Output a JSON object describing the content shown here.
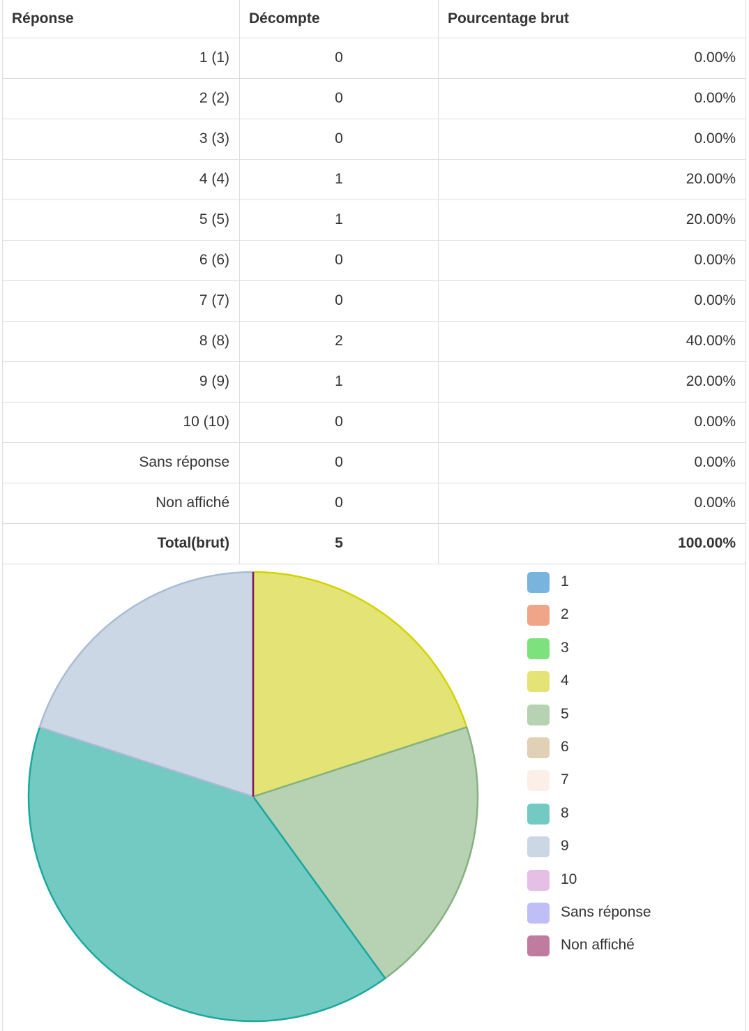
{
  "table": {
    "headers": {
      "answer": "Réponse",
      "count": "Décompte",
      "percent": "Pourcentage brut"
    },
    "rows": [
      {
        "answer": "1 (1)",
        "count": "0",
        "percent": "0.00%"
      },
      {
        "answer": "2 (2)",
        "count": "0",
        "percent": "0.00%"
      },
      {
        "answer": "3 (3)",
        "count": "0",
        "percent": "0.00%"
      },
      {
        "answer": "4 (4)",
        "count": "1",
        "percent": "20.00%"
      },
      {
        "answer": "5 (5)",
        "count": "1",
        "percent": "20.00%"
      },
      {
        "answer": "6 (6)",
        "count": "0",
        "percent": "0.00%"
      },
      {
        "answer": "7 (7)",
        "count": "0",
        "percent": "0.00%"
      },
      {
        "answer": "8 (8)",
        "count": "2",
        "percent": "40.00%"
      },
      {
        "answer": "9 (9)",
        "count": "1",
        "percent": "20.00%"
      },
      {
        "answer": "10 (10)",
        "count": "0",
        "percent": "0.00%"
      },
      {
        "answer": "Sans réponse",
        "count": "0",
        "percent": "0.00%"
      },
      {
        "answer": "Non affiché",
        "count": "0",
        "percent": "0.00%"
      }
    ],
    "total": {
      "answer": "Total(brut)",
      "count": "5",
      "percent": "100.00%"
    }
  },
  "chart_data": {
    "type": "pie",
    "categories": [
      "1",
      "2",
      "3",
      "4",
      "5",
      "6",
      "7",
      "8",
      "9",
      "10",
      "Sans réponse",
      "Non affiché"
    ],
    "values": [
      0,
      0,
      0,
      1,
      1,
      0,
      0,
      2,
      1,
      0,
      0,
      0
    ],
    "colors": [
      "#79b4de",
      "#f0a488",
      "#7de27d",
      "#e3e475",
      "#b6d2b3",
      "#e0d0b5",
      "#fcefe8",
      "#72cac3",
      "#ccd7e6",
      "#e5bfe5",
      "#c0bef6",
      "#c07c9e"
    ],
    "stroke_colors": [
      "#5a9acb",
      "#e08868",
      "#4fcf4f",
      "#d2d300",
      "#84b27f",
      "#c7b08a",
      "#ecd5c8",
      "#1ba79c",
      "#a8bcd6",
      "#cf95cf",
      "#9a97ee",
      "#7f1d53"
    ],
    "legend_position": "right"
  }
}
